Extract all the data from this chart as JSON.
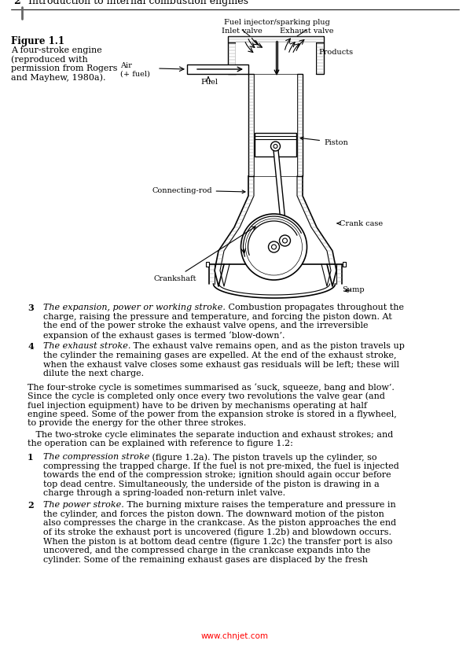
{
  "page_number": "2",
  "header_text": "Introduction to internal combustion engines",
  "figure_label": "Figure 1.1",
  "figure_caption_lines": [
    "A four-stroke engine",
    "(reproduced with",
    "permission from Rogers",
    "and Mayhew, 1980a)."
  ],
  "bg_color": "#ffffff",
  "text_color": "#000000",
  "watermark": "www.chnjet.com",
  "item3_italic": "The expansion, power or working stroke.",
  "item3_lines": [
    "The expansion, power or working stroke. Combustion propagates throughout the",
    "charge, raising the pressure and temperature, and forcing the piston down. At",
    "the end of the power stroke the exhaust valve opens, and the irreversible",
    "expansion of the exhaust gases is termed ‘blow-down’."
  ],
  "item4_italic": "The exhaust stroke.",
  "item4_lines": [
    "The exhaust stroke. The exhaust valve remains open, and as the piston travels up",
    "the cylinder the remaining gases are expelled. At the end of the exhaust stroke,",
    "when the exhaust valve closes some exhaust gas residuals will be left; these will",
    "dilute the next charge."
  ],
  "para1_lines": [
    "The four-stroke cycle is sometimes summarised as ‘suck, squeeze, bang and blow’.",
    "Since the cycle is completed only once every two revolutions the valve gear (and",
    "fuel injection equipment) have to be driven by mechanisms operating at half",
    "engine speed. Some of the power from the expansion stroke is stored in a flywheel,",
    "to provide the energy for the other three strokes."
  ],
  "para2_lines": [
    "   The two-stroke cycle eliminates the separate induction and exhaust strokes; and",
    "the operation can be explained with reference to figure 1.2:"
  ],
  "item1_italic": "The compression stroke",
  "item1_lines": [
    "The compression stroke (figure 1.2a). The piston travels up the cylinder, so",
    "compressing the trapped charge. If the fuel is not pre-mixed, the fuel is injected",
    "towards the end of the compression stroke; ignition should again occur before",
    "top dead centre. Simultaneously, the underside of the piston is drawing in a",
    "charge through a spring-loaded non-return inlet valve."
  ],
  "item2_italic": "The power stroke.",
  "item2_lines": [
    "The power stroke. The burning mixture raises the temperature and pressure in",
    "the cylinder, and forces the piston down. The downward motion of the piston",
    "also compresses the charge in the crankcase. As the piston approaches the end",
    "of its stroke the exhaust port is uncovered (figure 1.2b) and blowdown occurs.",
    "When the piston is at bottom dead centre (figure 1.2c) the transfer port is also",
    "uncovered, and the compressed charge in the crankcase expands into the",
    "cylinder. Some of the remaining exhaust gases are displaced by the fresh"
  ]
}
